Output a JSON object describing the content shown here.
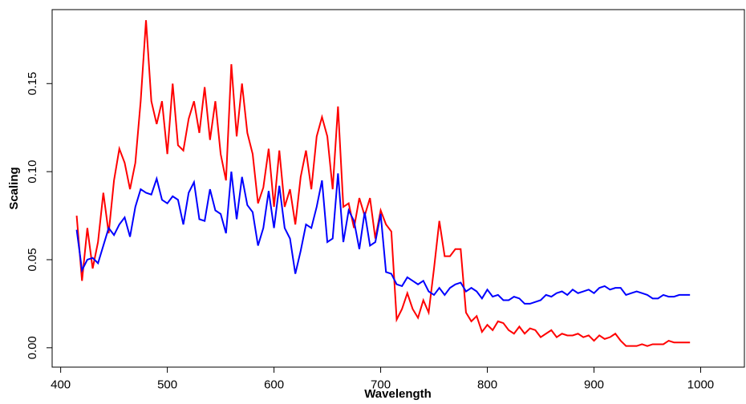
{
  "chart_data": {
    "type": "line",
    "x_label": "Wavelength",
    "y_label": "Scaling",
    "x": [
      415,
      420,
      425,
      430,
      435,
      440,
      445,
      450,
      455,
      460,
      465,
      470,
      475,
      480,
      485,
      490,
      495,
      500,
      505,
      510,
      515,
      520,
      525,
      530,
      535,
      540,
      545,
      550,
      555,
      560,
      565,
      570,
      575,
      580,
      585,
      590,
      595,
      600,
      605,
      610,
      615,
      620,
      625,
      630,
      635,
      640,
      645,
      650,
      655,
      660,
      665,
      670,
      675,
      680,
      685,
      690,
      695,
      700,
      705,
      710,
      715,
      720,
      725,
      730,
      735,
      740,
      745,
      750,
      755,
      760,
      765,
      770,
      775,
      780,
      785,
      790,
      795,
      800,
      805,
      810,
      815,
      820,
      825,
      830,
      835,
      840,
      845,
      850,
      855,
      860,
      865,
      870,
      875,
      880,
      885,
      890,
      895,
      900,
      905,
      910,
      915,
      920,
      925,
      930,
      935,
      940,
      945,
      950,
      955,
      960,
      965,
      970,
      975,
      980,
      985,
      990
    ],
    "series": [
      {
        "color": "#ff0000",
        "values": [
          0.075,
          0.038,
          0.068,
          0.045,
          0.06,
          0.088,
          0.065,
          0.095,
          0.113,
          0.105,
          0.09,
          0.105,
          0.14,
          0.186,
          0.14,
          0.127,
          0.14,
          0.11,
          0.15,
          0.115,
          0.112,
          0.13,
          0.14,
          0.122,
          0.148,
          0.118,
          0.14,
          0.11,
          0.095,
          0.161,
          0.12,
          0.15,
          0.122,
          0.11,
          0.082,
          0.091,
          0.113,
          0.08,
          0.112,
          0.08,
          0.09,
          0.07,
          0.097,
          0.112,
          0.09,
          0.12,
          0.131,
          0.12,
          0.09,
          0.137,
          0.08,
          0.082,
          0.068,
          0.085,
          0.075,
          0.085,
          0.062,
          0.078,
          0.07,
          0.066,
          0.016,
          0.022,
          0.031,
          0.022,
          0.017,
          0.027,
          0.02,
          0.045,
          0.072,
          0.052,
          0.052,
          0.056,
          0.056,
          0.02,
          0.015,
          0.018,
          0.009,
          0.013,
          0.01,
          0.015,
          0.014,
          0.01,
          0.008,
          0.012,
          0.008,
          0.011,
          0.01,
          0.006,
          0.008,
          0.01,
          0.006,
          0.008,
          0.007,
          0.007,
          0.008,
          0.006,
          0.007,
          0.004,
          0.007,
          0.005,
          0.006,
          0.008,
          0.004,
          0.001,
          0.001,
          0.001,
          0.002,
          0.001,
          0.002,
          0.002,
          0.002,
          0.004,
          0.003,
          0.003,
          0.003,
          0.003
        ]
      },
      {
        "color": "#0000ff",
        "values": [
          0.067,
          0.044,
          0.05,
          0.051,
          0.048,
          0.058,
          0.068,
          0.064,
          0.07,
          0.074,
          0.063,
          0.08,
          0.09,
          0.088,
          0.087,
          0.096,
          0.084,
          0.082,
          0.086,
          0.084,
          0.07,
          0.088,
          0.094,
          0.073,
          0.072,
          0.09,
          0.078,
          0.076,
          0.065,
          0.1,
          0.073,
          0.097,
          0.081,
          0.077,
          0.058,
          0.068,
          0.089,
          0.068,
          0.092,
          0.068,
          0.062,
          0.042,
          0.055,
          0.07,
          0.068,
          0.08,
          0.095,
          0.06,
          0.062,
          0.099,
          0.06,
          0.078,
          0.072,
          0.056,
          0.077,
          0.058,
          0.06,
          0.076,
          0.043,
          0.042,
          0.036,
          0.035,
          0.04,
          0.038,
          0.036,
          0.038,
          0.032,
          0.03,
          0.034,
          0.03,
          0.034,
          0.036,
          0.037,
          0.032,
          0.034,
          0.032,
          0.028,
          0.033,
          0.029,
          0.03,
          0.027,
          0.027,
          0.029,
          0.028,
          0.025,
          0.025,
          0.026,
          0.027,
          0.03,
          0.029,
          0.031,
          0.032,
          0.03,
          0.033,
          0.031,
          0.032,
          0.033,
          0.031,
          0.034,
          0.035,
          0.033,
          0.034,
          0.034,
          0.03,
          0.031,
          0.032,
          0.031,
          0.03,
          0.028,
          0.028,
          0.03,
          0.029,
          0.029,
          0.03,
          0.03,
          0.03
        ]
      }
    ],
    "xlim": [
      392,
      1041
    ],
    "ylim": [
      -0.011,
      0.192
    ],
    "xticks": [
      400,
      500,
      600,
      700,
      800,
      900,
      1000
    ],
    "yticks": [
      {
        "value": 0,
        "label": "0.00"
      },
      {
        "value": 0.05,
        "label": "0.05"
      },
      {
        "value": 0.1,
        "label": "0.10"
      },
      {
        "value": 0.15,
        "label": "0.15"
      }
    ]
  }
}
